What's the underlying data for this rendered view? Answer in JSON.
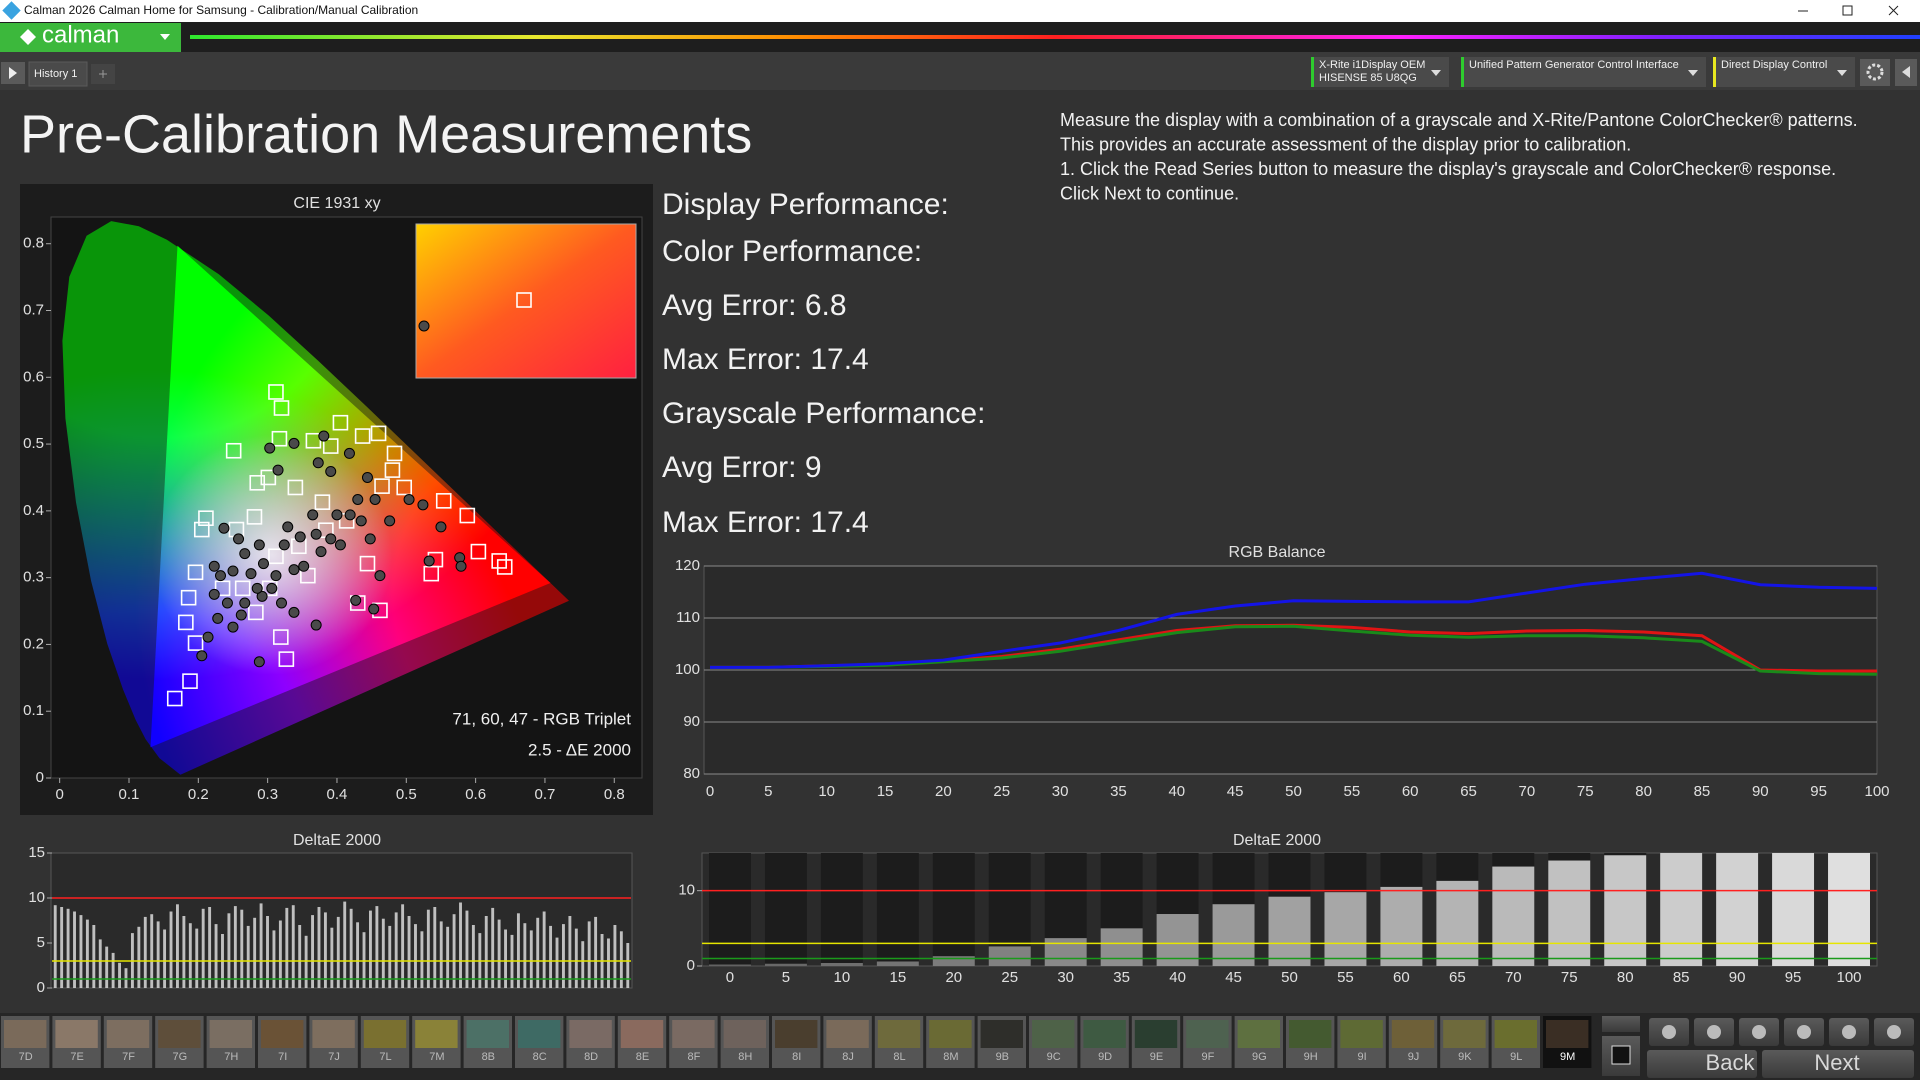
{
  "window": {
    "title": "Calman 2026 Calman Home for Samsung  - Calibration/Manual Calibration"
  },
  "toolbar": {
    "logo": "calman",
    "tab": "History 1",
    "devices": [
      {
        "lines": [
          "X-Rite i1Display OEM",
          "HISENSE 85 U8QG"
        ],
        "color": "#2ecc2e"
      },
      {
        "lines": [
          "Unified Pattern Generator Control Interface"
        ],
        "color": "#2ecc2e"
      },
      {
        "lines": [
          "Direct Display Control"
        ],
        "color": "#e8e820"
      }
    ]
  },
  "page": {
    "title": "Pre-Calibration Measurements",
    "instructions": [
      "Measure the display with a combination of a grayscale and X-Rite/Pantone ColorChecker® patterns.",
      "This provides an accurate assessment of the display prior to calibration.",
      "1. Click the Read Series button to measure the display's grayscale and ColorChecker® response.",
      "Click Next to continue."
    ],
    "performance": [
      "Display Performance:",
      "Color Performance:",
      "Avg Error: 6.8",
      "Max Error: 17.4",
      "Grayscale Performance:",
      "Avg Error: 9",
      "Max Error: 17.4"
    ]
  },
  "cie_chart": {
    "type": "scatter",
    "title": "CIE 1931 xy",
    "xlim": [
      -0.0125,
      0.84
    ],
    "ylim": [
      0,
      0.84
    ],
    "xticks": [
      0,
      0.1,
      0.2,
      0.3,
      0.4,
      0.5,
      0.6,
      0.7,
      0.8
    ],
    "yticks": [
      0,
      0.1,
      0.2,
      0.3,
      0.4,
      0.5,
      0.6,
      0.7,
      0.8
    ],
    "annotations": [
      "71, 60, 47 - RGB Triplet",
      "2.5 - ΔE 2000"
    ],
    "series": [
      {
        "marker": "square",
        "color": "#ffffff",
        "x": [
          0.251,
          0.312,
          0.32,
          0.317,
          0.285,
          0.211,
          0.205,
          0.255,
          0.281,
          0.301,
          0.34,
          0.366,
          0.391,
          0.405,
          0.437,
          0.46,
          0.483,
          0.48,
          0.465,
          0.497,
          0.554,
          0.588,
          0.604,
          0.634,
          0.642,
          0.542,
          0.536,
          0.444,
          0.43,
          0.462,
          0.358,
          0.345,
          0.312,
          0.303,
          0.283,
          0.264,
          0.235,
          0.196,
          0.186,
          0.182,
          0.196,
          0.188,
          0.166,
          0.327,
          0.319,
          0.384,
          0.414,
          0.379
        ],
        "values": [
          0.49,
          0.578,
          0.554,
          0.508,
          0.442,
          0.389,
          0.372,
          0.372,
          0.391,
          0.45,
          0.435,
          0.505,
          0.497,
          0.532,
          0.512,
          0.516,
          0.486,
          0.461,
          0.437,
          0.435,
          0.415,
          0.393,
          0.339,
          0.325,
          0.316,
          0.327,
          0.306,
          0.321,
          0.262,
          0.251,
          0.303,
          0.347,
          0.332,
          0.284,
          0.248,
          0.284,
          0.284,
          0.308,
          0.27,
          0.233,
          0.202,
          0.145,
          0.119,
          0.178,
          0.211,
          0.371,
          0.385,
          0.413
        ]
      },
      {
        "marker": "circle",
        "color": "#4a4a4a",
        "x": [
          0.315,
          0.303,
          0.338,
          0.373,
          0.381,
          0.391,
          0.418,
          0.444,
          0.43,
          0.419,
          0.365,
          0.329,
          0.288,
          0.267,
          0.258,
          0.237,
          0.223,
          0.232,
          0.25,
          0.276,
          0.294,
          0.312,
          0.324,
          0.347,
          0.37,
          0.391,
          0.405,
          0.377,
          0.352,
          0.338,
          0.448,
          0.476,
          0.504,
          0.524,
          0.55,
          0.577,
          0.579,
          0.533,
          0.462,
          0.453,
          0.427,
          0.37,
          0.338,
          0.32,
          0.292,
          0.267,
          0.25,
          0.228,
          0.214,
          0.205,
          0.288,
          0.262,
          0.223,
          0.242,
          0.285,
          0.306,
          0.435,
          0.455,
          0.4
        ],
        "values": [
          0.461,
          0.494,
          0.501,
          0.472,
          0.512,
          0.459,
          0.486,
          0.45,
          0.417,
          0.394,
          0.394,
          0.376,
          0.349,
          0.336,
          0.358,
          0.374,
          0.317,
          0.303,
          0.31,
          0.306,
          0.321,
          0.303,
          0.349,
          0.361,
          0.365,
          0.358,
          0.349,
          0.339,
          0.317,
          0.312,
          0.358,
          0.385,
          0.417,
          0.409,
          0.376,
          0.33,
          0.317,
          0.325,
          0.303,
          0.253,
          0.266,
          0.229,
          0.248,
          0.262,
          0.272,
          0.262,
          0.226,
          0.239,
          0.211,
          0.183,
          0.174,
          0.244,
          0.275,
          0.262,
          0.284,
          0.284,
          0.385,
          0.417,
          0.394
        ]
      }
    ]
  },
  "rgb_balance_chart": {
    "type": "line",
    "title": "RGB Balance",
    "x": [
      0,
      5,
      10,
      15,
      20,
      25,
      30,
      35,
      40,
      45,
      50,
      55,
      60,
      65,
      70,
      75,
      80,
      85,
      90,
      95,
      100
    ],
    "xlim": [
      0,
      100
    ],
    "ylim": [
      80,
      120
    ],
    "yticks": [
      80,
      90,
      100,
      110,
      120
    ],
    "grid": true,
    "series": [
      {
        "color": "#e01414",
        "values": [
          100.5,
          100.5,
          100.8,
          101.1,
          101.8,
          102.6,
          104,
          105.8,
          107.6,
          108.5,
          108.6,
          108.2,
          107.3,
          107,
          107.5,
          107.6,
          107.3,
          106.6,
          100,
          99.8,
          99.8
        ]
      },
      {
        "color": "#1a8a1a",
        "values": [
          100.5,
          100.5,
          100.7,
          100.9,
          101.6,
          102.3,
          103.6,
          105.4,
          107.2,
          108.3,
          108.4,
          107.5,
          106.7,
          106.3,
          106.6,
          106.6,
          106.2,
          105.5,
          99.8,
          99.3,
          99.2
        ]
      },
      {
        "color": "#1414e6",
        "values": [
          100.5,
          100.5,
          100.8,
          101.2,
          101.9,
          103.6,
          105.2,
          107.6,
          110.7,
          112.3,
          113.3,
          113.2,
          113.1,
          113.1,
          114.8,
          116.5,
          117.6,
          118.6,
          116.4,
          115.9,
          115.7
        ]
      }
    ]
  },
  "colorchecker_chart": {
    "type": "bar",
    "title": "DeltaE 2000",
    "ylim": [
      0,
      15
    ],
    "yticks": [
      0,
      5,
      10,
      15
    ],
    "color": "#d9d9d9",
    "reference_lines": [
      {
        "value": 10,
        "color": "#ff2020"
      },
      {
        "value": 3,
        "color": "#e6e600"
      },
      {
        "value": 1,
        "color": "#1a9a1a"
      }
    ],
    "values": [
      9.2,
      9.0,
      8.8,
      8.5,
      8.1,
      7.6,
      7.0,
      5.4,
      4.6,
      3.9,
      2.8,
      2.2,
      6.1,
      6.8,
      7.9,
      8.2,
      7.4,
      6.5,
      8.5,
      9.3,
      8.0,
      7.2,
      6.6,
      8.8,
      9.0,
      7.1,
      6.0,
      8.3,
      9.1,
      8.7,
      6.9,
      7.8,
      9.4,
      8.0,
      6.4,
      7.5,
      8.9,
      9.2,
      7.0,
      5.8,
      8.1,
      9.0,
      8.4,
      6.7,
      7.9,
      9.6,
      8.8,
      7.3,
      6.2,
      8.6,
      9.1,
      7.7,
      6.9,
      8.4,
      9.3,
      8.0,
      7.1,
      6.3,
      8.7,
      9.0,
      7.4,
      6.8,
      8.2,
      9.5,
      8.6,
      7.0,
      6.1,
      8.0,
      8.9,
      7.6,
      6.5,
      5.9,
      8.3,
      7.2,
      6.4,
      7.8,
      8.5,
      6.9,
      5.6,
      7.1,
      8.0,
      6.6,
      5.2,
      7.4,
      7.9,
      6.0,
      5.5,
      7.0,
      6.3,
      5.0
    ]
  },
  "grayscale_chart": {
    "type": "bar",
    "title": "DeltaE 2000",
    "categories": [
      0,
      5,
      10,
      15,
      20,
      25,
      30,
      35,
      40,
      45,
      50,
      55,
      60,
      65,
      70,
      75,
      80,
      85,
      90,
      95,
      100
    ],
    "values": [
      0.2,
      0.3,
      0.4,
      0.6,
      1.3,
      2.6,
      3.7,
      5.0,
      6.9,
      8.2,
      9.2,
      9.8,
      10.5,
      11.3,
      13.2,
      14.0,
      14.7,
      15,
      15,
      15,
      15
    ],
    "ylim": [
      0,
      15
    ],
    "yticks": [
      0,
      10
    ],
    "color": "#e6e6e6",
    "reference_lines": [
      {
        "value": 10,
        "color": "#ff2020"
      },
      {
        "value": 3,
        "color": "#e6e600"
      },
      {
        "value": 1,
        "color": "#1a9a1a"
      }
    ]
  },
  "patches": [
    {
      "label": "7D",
      "color": "#7a6a5a"
    },
    {
      "label": "7E",
      "color": "#8a7868"
    },
    {
      "label": "7F",
      "color": "#7d6e60"
    },
    {
      "label": "7G",
      "color": "#5e4e3a"
    },
    {
      "label": "7H",
      "color": "#7a6e62"
    },
    {
      "label": "7I",
      "color": "#6a5236"
    },
    {
      "label": "7J",
      "color": "#7e6e5e"
    },
    {
      "label": "7L",
      "color": "#7a7030"
    },
    {
      "label": "7M",
      "color": "#8a8238"
    },
    {
      "label": "8B",
      "color": "#4c7066"
    },
    {
      "label": "8C",
      "color": "#3e6a64"
    },
    {
      "label": "8D",
      "color": "#7a6a64"
    },
    {
      "label": "8E",
      "color": "#8a6a5e"
    },
    {
      "label": "8F",
      "color": "#7a6a62"
    },
    {
      "label": "8H",
      "color": "#6e625c"
    },
    {
      "label": "8I",
      "color": "#4a3e2e"
    },
    {
      "label": "8J",
      "color": "#7a6a5a"
    },
    {
      "label": "8L",
      "color": "#6e6a3c"
    },
    {
      "label": "8M",
      "color": "#6a6a34"
    },
    {
      "label": "9B",
      "color": "#2e2e2a"
    },
    {
      "label": "9C",
      "color": "#4e6248"
    },
    {
      "label": "9D",
      "color": "#3e5a42"
    },
    {
      "label": "9E",
      "color": "#2a3e30"
    },
    {
      "label": "9F",
      "color": "#4e6250"
    },
    {
      "label": "9G",
      "color": "#5e7040"
    },
    {
      "label": "9H",
      "color": "#445a30"
    },
    {
      "label": "9I",
      "color": "#5e6a34"
    },
    {
      "label": "9J",
      "color": "#6e6038"
    },
    {
      "label": "9K",
      "color": "#6e6a3c"
    },
    {
      "label": "9L",
      "color": "#6a6e2e"
    },
    {
      "label": "9M",
      "color": "#3a2e24",
      "selected": true
    }
  ],
  "navigation": {
    "back": "Back",
    "next": "Next"
  }
}
